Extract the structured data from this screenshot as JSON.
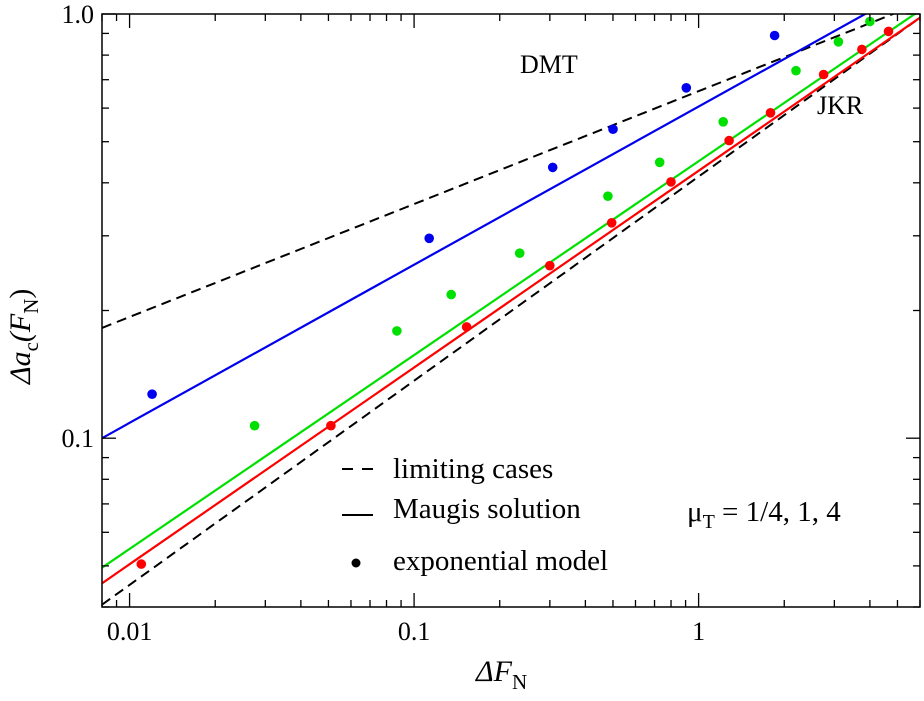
{
  "chart_data": {
    "type": "line+scatter",
    "title": "",
    "xscale": "log",
    "yscale": "log",
    "xlim": [
      0.008,
      6.0
    ],
    "ylim": [
      0.04,
      1.0
    ],
    "xlabel": {
      "main": "ΔF",
      "sub": "N"
    },
    "ylabel": {
      "main": "Δa",
      "sub": "c",
      "paren_open": "(F",
      "paren_sub": "N",
      "paren_close": ")"
    },
    "xticks": [
      0.01,
      0.1,
      1
    ],
    "xtick_labels": [
      "0.01",
      "0.1",
      "1"
    ],
    "yticks": [
      0.1,
      1.0
    ],
    "ytick_labels": [
      "0.1",
      "1.0"
    ],
    "lines": [
      {
        "name": "DMT",
        "style": "dashed",
        "color": "#000000",
        "x": [
          0.008,
          6.0
        ],
        "y": [
          0.182,
          1.06
        ]
      },
      {
        "name": "JKR",
        "style": "dashed",
        "color": "#000000",
        "x": [
          0.008,
          6.0
        ],
        "y": [
          0.0405,
          0.98
        ]
      },
      {
        "name": "Maugis mu_T = 1/4",
        "style": "solid",
        "color": "#0000ee",
        "x": [
          0.008,
          6.0
        ],
        "y": [
          0.1,
          1.18
        ]
      },
      {
        "name": "Maugis mu_T = 1",
        "style": "solid",
        "color": "#00e000",
        "x": [
          0.008,
          6.0
        ],
        "y": [
          0.0495,
          1.02
        ]
      },
      {
        "name": "Maugis mu_T = 4",
        "style": "solid",
        "color": "#ff0000",
        "x": [
          0.008,
          6.0
        ],
        "y": [
          0.0455,
          0.98
        ]
      }
    ],
    "series": [
      {
        "name": "exponential model mu_T = 1/4",
        "color": "#0000ee",
        "x": [
          0.012,
          0.113,
          0.307,
          0.5,
          0.905,
          1.85
        ],
        "y": [
          0.127,
          0.296,
          0.435,
          0.535,
          0.67,
          0.89
        ]
      },
      {
        "name": "exponential model mu_T = 1",
        "color": "#00e000",
        "x": [
          0.0275,
          0.087,
          0.135,
          0.235,
          0.48,
          0.73,
          1.22,
          2.2,
          3.1,
          4.0
        ],
        "y": [
          0.107,
          0.179,
          0.218,
          0.273,
          0.372,
          0.447,
          0.557,
          0.735,
          0.86,
          0.96
        ]
      },
      {
        "name": "exponential model mu_T = 4",
        "color": "#ff0000",
        "x": [
          0.011,
          0.051,
          0.153,
          0.3,
          0.495,
          0.8,
          1.28,
          1.79,
          2.75,
          3.75,
          4.65
        ],
        "y": [
          0.0505,
          0.107,
          0.183,
          0.255,
          0.322,
          0.402,
          0.503,
          0.585,
          0.72,
          0.825,
          0.91
        ]
      }
    ],
    "annotations": [
      {
        "text": "DMT",
        "x": 0.38,
        "y": 0.88
      },
      {
        "text": "JKR",
        "x": 2.05,
        "y": 0.64
      }
    ],
    "legend": {
      "placement": "bottom-right",
      "items": [
        {
          "symbol": "dash",
          "label": "limiting cases"
        },
        {
          "symbol": "solid",
          "label": "Maugis solution"
        },
        {
          "symbol": "dot",
          "label": "exponential model"
        }
      ],
      "note": {
        "prefix": "μ",
        "sub": "T",
        "rest": " = 1/4, 1, 4"
      }
    }
  }
}
